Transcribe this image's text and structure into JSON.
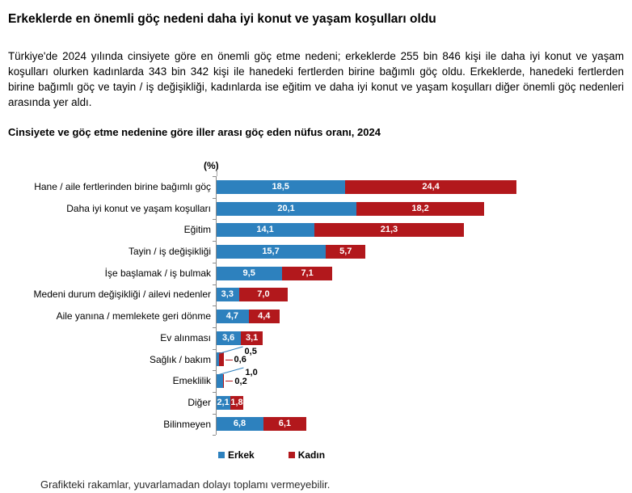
{
  "page": {
    "title": "Erkeklerde en önemli göç nedeni daha iyi konut ve yaşam koşulları oldu",
    "body": "Türkiye'de 2024 yılında cinsiyete göre en önemli göç etme nedeni; erkeklerde 255 bin 846 kişi ile daha iyi konut ve yaşam koşulları olurken kadınlarda 343 bin 342 kişi ile hanedeki fertlerden birine bağımlı göç oldu. Erkeklerde, hanedeki fertlerden birine bağımlı göç ve tayin / iş değişikliği, kadınlarda ise eğitim ve daha iyi konut ve yaşam koşulları diğer önemli göç nedenleri arasında yer aldı.",
    "footnote": "Grafikteki rakamlar, yuvarlamadan dolayı toplamı vermeyebilir."
  },
  "chart_data": {
    "type": "bar",
    "orientation": "horizontal",
    "stacked": true,
    "title": "Cinsiyete ve göç etme nedenine göre iller arası göç eden nüfus oranı, 2024",
    "unit_label": "(%)",
    "xlim": [
      0,
      45
    ],
    "grid": false,
    "legend_position": "bottom",
    "categories": [
      "Hane / aile fertlerinden birine bağımlı göç",
      "Daha iyi konut ve yaşam koşulları",
      "Eğitim",
      "Tayin / iş değişikliği",
      "İşe başlamak / iş bulmak",
      "Medeni durum değişikliği / ailevi nedenler",
      "Aile yanına / memlekete geri dönme",
      "Ev alınması",
      "Sağlık / bakım",
      "Emeklilik",
      "Diğer",
      "Bilinmeyen"
    ],
    "series": [
      {
        "name": "Erkek",
        "color": "#2D81BE",
        "values": [
          18.5,
          20.1,
          14.1,
          15.7,
          9.5,
          3.3,
          4.7,
          3.6,
          0.5,
          1.0,
          2.1,
          6.8
        ],
        "labels": [
          "18,5",
          "20,1",
          "14,1",
          "15,7",
          "9,5",
          "3,3",
          "4,7",
          "3,6",
          "0,5",
          "1,0",
          "2,1",
          "6,8"
        ]
      },
      {
        "name": "Kadın",
        "color": "#B2181C",
        "values": [
          24.4,
          18.2,
          21.3,
          5.7,
          7.1,
          7.0,
          4.4,
          3.1,
          0.6,
          0.2,
          1.8,
          6.1
        ],
        "labels": [
          "24,4",
          "18,2",
          "21,3",
          "5,7",
          "7,1",
          "7,0",
          "4,4",
          "3,1",
          "0,6",
          "0,2",
          "1,8",
          "6,1"
        ]
      }
    ]
  }
}
